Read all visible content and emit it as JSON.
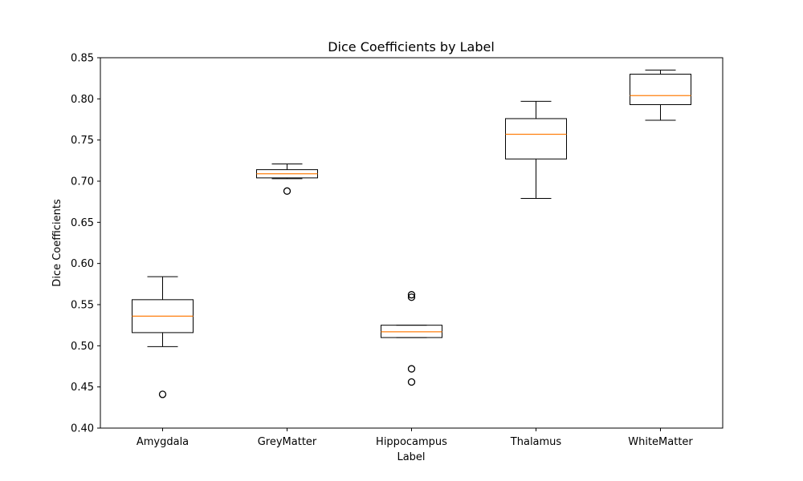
{
  "chart_data": {
    "type": "box",
    "title": "Dice Coefficients by Label",
    "xlabel": "Label",
    "ylabel": "Dice Coefficients",
    "ylim": [
      0.4,
      0.85
    ],
    "yticks": [
      "0.40",
      "0.45",
      "0.50",
      "0.55",
      "0.60",
      "0.65",
      "0.70",
      "0.75",
      "0.80",
      "0.85"
    ],
    "categories": [
      "Amygdala",
      "GreyMatter",
      "Hippocampus",
      "Thalamus",
      "WhiteMatter"
    ],
    "boxes": [
      {
        "label": "Amygdala",
        "whisker_low": 0.499,
        "q1": 0.516,
        "median": 0.536,
        "q3": 0.556,
        "whisker_high": 0.584,
        "outliers": [
          0.441
        ]
      },
      {
        "label": "GreyMatter",
        "whisker_low": 0.703,
        "q1": 0.704,
        "median": 0.709,
        "q3": 0.714,
        "whisker_high": 0.721,
        "outliers": [
          0.688
        ]
      },
      {
        "label": "Hippocampus",
        "whisker_low": 0.51,
        "q1": 0.51,
        "median": 0.517,
        "q3": 0.525,
        "whisker_high": 0.525,
        "outliers": [
          0.562,
          0.559,
          0.472,
          0.456
        ]
      },
      {
        "label": "Thalamus",
        "whisker_low": 0.679,
        "q1": 0.727,
        "median": 0.757,
        "q3": 0.776,
        "whisker_high": 0.797,
        "outliers": []
      },
      {
        "label": "WhiteMatter",
        "whisker_low": 0.774,
        "q1": 0.793,
        "median": 0.804,
        "q3": 0.83,
        "whisker_high": 0.835,
        "outliers": []
      }
    ],
    "colors": {
      "box": "#000000",
      "median": "#ff7f0e",
      "outlier": "#000000"
    },
    "grid": false,
    "legend": "none"
  }
}
